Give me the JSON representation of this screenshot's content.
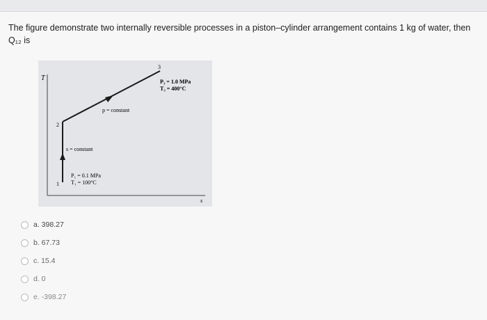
{
  "question": "The figure demonstrate two internally reversible processes in a piston–cylinder arrangement contains 1 kg of water, then Q₁₂ is",
  "figure": {
    "t_axis": "T",
    "s_axis": "s",
    "point_1": "1",
    "point_2": "2",
    "point_3": "3",
    "p_constant": "p = constant",
    "s_constant": "s = constant",
    "state_3_p": "P₃ = 1.0 MPa",
    "state_3_t": "T₃ = 400°C",
    "state_1_p": "P₁ = 0.1 MPa",
    "state_1_t": "T₁ = 100°C"
  },
  "options": [
    "a. 398.27",
    "b. 67.73",
    "c. 15.4",
    "d. 0",
    "e. -398.27"
  ]
}
